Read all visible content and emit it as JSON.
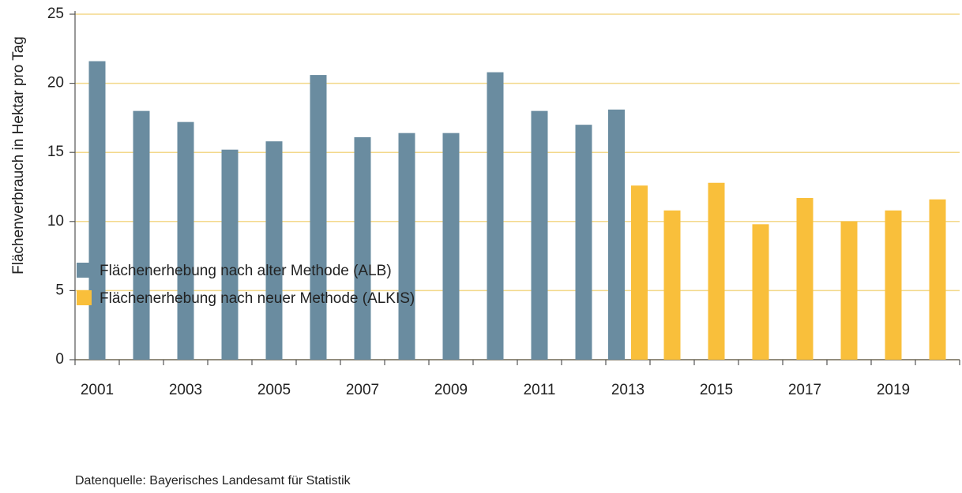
{
  "chart_data": {
    "type": "bar",
    "y_label": "Flächenverbrauch in Hektar pro Tag",
    "categories": [
      "2001",
      null,
      "2003",
      null,
      "2005",
      null,
      "2007",
      null,
      "2009",
      null,
      "2011",
      null,
      "2013",
      null,
      "2015",
      null,
      "2017",
      null,
      "2019",
      null
    ],
    "series": [
      {
        "name": "Flächenerhebung nach alter Methode (ALB)",
        "color": "#6a8ca0",
        "values": [
          21.6,
          18,
          17.2,
          15.2,
          15.8,
          20.6,
          16.1,
          16.4,
          16.4,
          20.8,
          18,
          17,
          18.1,
          null,
          null,
          null,
          null,
          null,
          null,
          null
        ]
      },
      {
        "name": "Flächenerhebung nach neuer Methode (ALKIS)",
        "color": "#f9bf3b",
        "values": [
          null,
          null,
          null,
          null,
          null,
          null,
          null,
          null,
          null,
          null,
          null,
          null,
          12.6,
          10.8,
          12.8,
          9.8,
          11.7,
          10,
          10.8,
          11.6
        ]
      }
    ],
    "ylim": [
      0,
      25
    ],
    "yticks": [
      0,
      5,
      10,
      15,
      20,
      25
    ],
    "grid": true,
    "source": "Datenquelle: Bayerisches Landesamt für Statistik"
  }
}
